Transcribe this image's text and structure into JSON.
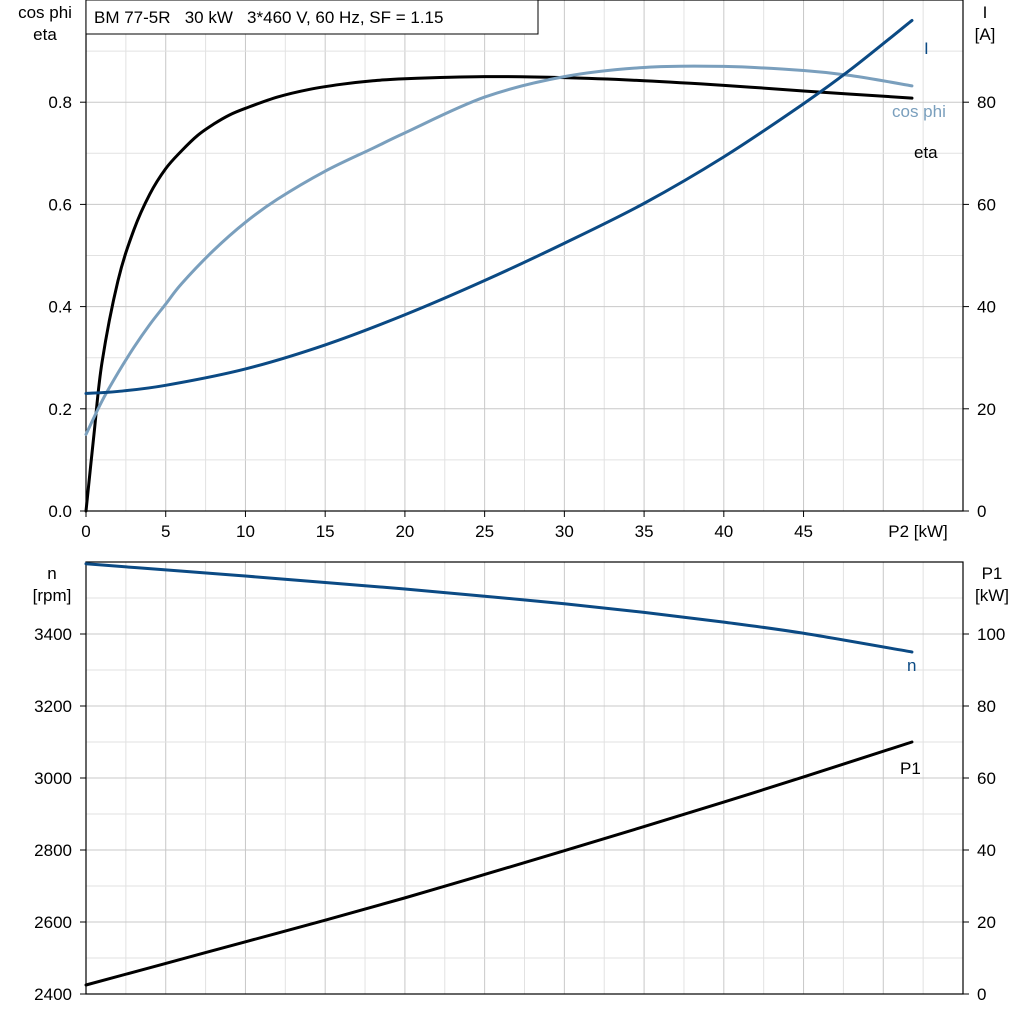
{
  "colors": {
    "black": "#000000",
    "dark_blue": "#0b4a84",
    "light_blue": "#7a9fbd"
  },
  "chart_data": [
    {
      "type": "line",
      "title": "BM 77-5R   30 kW   3*460 V, 60 Hz, SF = 1.15",
      "xlabel": "P2 [kW]",
      "xlim": [
        0,
        55
      ],
      "xticks": [
        0,
        5,
        10,
        15,
        20,
        25,
        30,
        35,
        40,
        45
      ],
      "ylabel_left_line1": "cos phi",
      "ylabel_left_line2": "eta",
      "ylim_left": [
        0,
        1.0
      ],
      "yticks_left": [
        "0.0",
        "0.2",
        "0.4",
        "0.6",
        "0.8"
      ],
      "yticks_left_values": [
        0,
        0.2,
        0.4,
        0.6,
        0.8
      ],
      "ylabel_right_line1": "I",
      "ylabel_right_line2": "[A]",
      "ylim_right": [
        0,
        100
      ],
      "yticks_right": [
        "0",
        "20",
        "40",
        "60",
        "80"
      ],
      "yticks_right_values": [
        0,
        20,
        40,
        60,
        80
      ],
      "grid": true,
      "series": [
        {
          "name": "eta",
          "axis": "left",
          "color": "#000000",
          "x": [
            0,
            0.5,
            1,
            2,
            3,
            4,
            5,
            6,
            7,
            8,
            9,
            10,
            12,
            14,
            16,
            18,
            20,
            25,
            30,
            35,
            40,
            45,
            51.8
          ],
          "y": [
            0,
            0.15,
            0.29,
            0.45,
            0.55,
            0.62,
            0.67,
            0.705,
            0.735,
            0.757,
            0.775,
            0.788,
            0.81,
            0.825,
            0.835,
            0.842,
            0.846,
            0.85,
            0.848,
            0.842,
            0.833,
            0.822,
            0.808
          ]
        },
        {
          "name": "cos phi",
          "axis": "left",
          "color": "#7a9fbd",
          "x": [
            0,
            1,
            2,
            3,
            4,
            5,
            6,
            8,
            10,
            12,
            15,
            18,
            20,
            25,
            30,
            35,
            40,
            45,
            48,
            51.8
          ],
          "y": [
            0.15,
            0.215,
            0.27,
            0.32,
            0.365,
            0.405,
            0.445,
            0.51,
            0.565,
            0.61,
            0.665,
            0.71,
            0.74,
            0.81,
            0.85,
            0.868,
            0.87,
            0.862,
            0.852,
            0.832
          ]
        },
        {
          "name": "I",
          "axis": "right",
          "color": "#0b4a84",
          "x": [
            0,
            2,
            5,
            10,
            15,
            20,
            25,
            30,
            35,
            40,
            45,
            48,
            51.8
          ],
          "y": [
            23,
            23.4,
            24.6,
            27.8,
            32.5,
            38.4,
            45.1,
            52.4,
            60.2,
            69.3,
            79.7,
            86.5,
            96
          ]
        }
      ]
    },
    {
      "type": "line",
      "xlim": [
        0,
        55
      ],
      "ylabel_left_line1": "n",
      "ylabel_left_line2": "[rpm]",
      "ylim_left": [
        2400,
        3600
      ],
      "yticks_left": [
        "2400",
        "2600",
        "2800",
        "3000",
        "3200",
        "3400"
      ],
      "yticks_left_values": [
        2400,
        2600,
        2800,
        3000,
        3200,
        3400
      ],
      "ylabel_right_line1": "P1",
      "ylabel_right_line2": "[kW]",
      "ylim_right": [
        0,
        120
      ],
      "yticks_right": [
        "0",
        "20",
        "40",
        "60",
        "80",
        "100"
      ],
      "yticks_right_values": [
        0,
        20,
        40,
        60,
        80,
        100
      ],
      "grid": true,
      "series": [
        {
          "name": "n",
          "axis": "left",
          "color": "#0b4a84",
          "x": [
            0,
            5,
            10,
            15,
            20,
            25,
            30,
            35,
            40,
            45,
            51.8
          ],
          "y": [
            3595,
            3578,
            3561,
            3543,
            3525,
            3505,
            3484,
            3460,
            3433,
            3402,
            3350
          ]
        },
        {
          "name": "P1",
          "axis": "right",
          "color": "#000000",
          "x": [
            0,
            5,
            10,
            15,
            20,
            25,
            30,
            35,
            40,
            45,
            51.8
          ],
          "y": [
            2.5,
            8.5,
            14.5,
            20.5,
            26.7,
            33.2,
            39.8,
            46.5,
            53.3,
            60.3,
            70
          ]
        }
      ]
    }
  ]
}
